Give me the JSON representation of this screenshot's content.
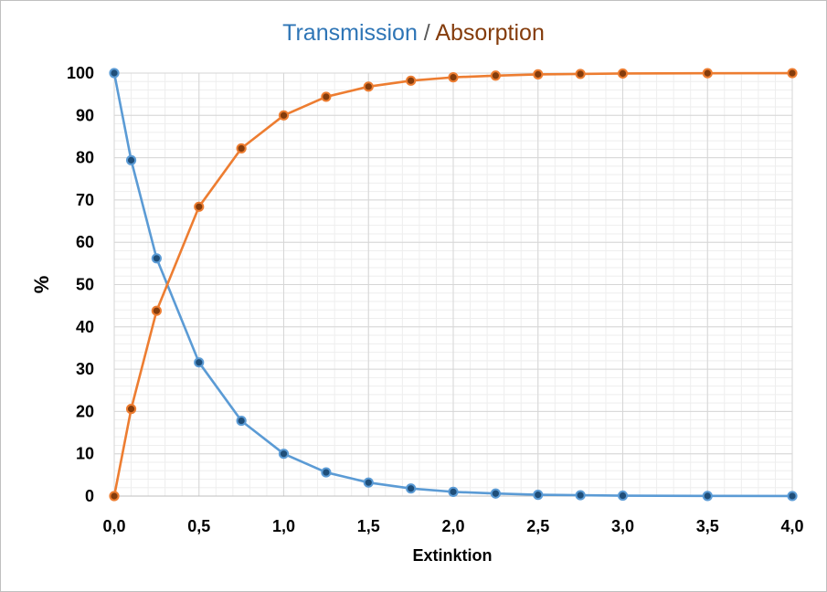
{
  "title": {
    "part1": "Transmission",
    "separator": " / ",
    "part2": "Absorption",
    "part1_color": "#2e75b6",
    "part2_color": "#843c0c"
  },
  "chart_data": {
    "type": "line",
    "title": "Transmission / Absorption",
    "xlabel": "Extinktion",
    "ylabel": "%",
    "xlim": [
      0,
      4
    ],
    "ylim": [
      0,
      100
    ],
    "x_ticks": [
      "0,0",
      "0,5",
      "1,0",
      "1,5",
      "2,0",
      "2,5",
      "3,0",
      "3,5",
      "4,0"
    ],
    "y_ticks": [
      "0",
      "10",
      "20",
      "30",
      "40",
      "50",
      "60",
      "70",
      "80",
      "90",
      "100"
    ],
    "grid": true,
    "minor_grid": true,
    "legend": "none",
    "series": [
      {
        "name": "Transmission",
        "color": "#5b9bd5",
        "marker_color": "#1f4e79",
        "x": [
          0,
          0.1,
          0.25,
          0.5,
          0.75,
          1.0,
          1.25,
          1.5,
          1.75,
          2.0,
          2.25,
          2.5,
          2.75,
          3.0,
          3.5,
          4.0
        ],
        "values": [
          100,
          79.4,
          56.2,
          31.6,
          17.8,
          10.0,
          5.6,
          3.2,
          1.8,
          1.0,
          0.6,
          0.3,
          0.2,
          0.1,
          0.03,
          0.01
        ]
      },
      {
        "name": "Absorption",
        "color": "#ed7d31",
        "marker_color": "#843c0c",
        "x": [
          0,
          0.1,
          0.25,
          0.5,
          0.75,
          1.0,
          1.25,
          1.5,
          1.75,
          2.0,
          2.25,
          2.5,
          2.75,
          3.0,
          3.5,
          4.0
        ],
        "values": [
          0,
          20.6,
          43.8,
          68.4,
          82.2,
          90.0,
          94.4,
          96.8,
          98.2,
          99.0,
          99.4,
          99.7,
          99.8,
          99.9,
          99.97,
          99.99
        ]
      }
    ]
  }
}
